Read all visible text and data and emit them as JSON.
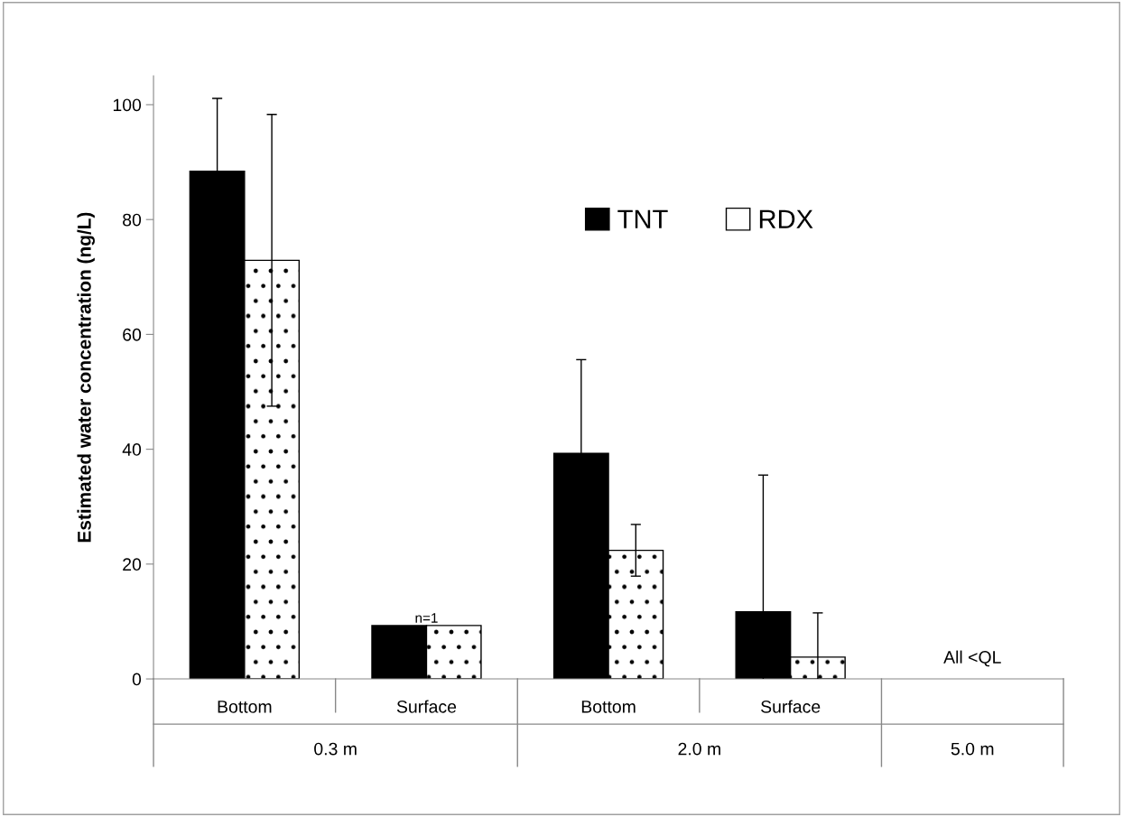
{
  "chart_data": {
    "type": "bar",
    "ylabel": "Estimated water concentration (ng/L)",
    "categories": [
      "Bottom",
      "Surface",
      "Bottom",
      "Surface",
      null
    ],
    "series": [
      {
        "name": "TNT",
        "color": "#000000",
        "values": [
          88.4,
          9.3,
          39.3,
          11.7,
          null
        ],
        "errors": [
          12.7,
          null,
          16.3,
          23.8,
          null
        ]
      },
      {
        "name": "RDX",
        "color": "#ffffff",
        "values": [
          72.9,
          9.3,
          22.4,
          3.8,
          null
        ],
        "errors": [
          25.4,
          null,
          4.5,
          7.7,
          null
        ]
      }
    ],
    "annotations": [
      "n=1",
      "All <QL",
      "0.3 m",
      "2.0 m",
      "5.0 m"
    ],
    "ylim": [
      0,
      105
    ],
    "yticks": [
      0,
      20,
      40,
      60,
      80,
      100
    ],
    "grid": false,
    "legend": "top"
  }
}
